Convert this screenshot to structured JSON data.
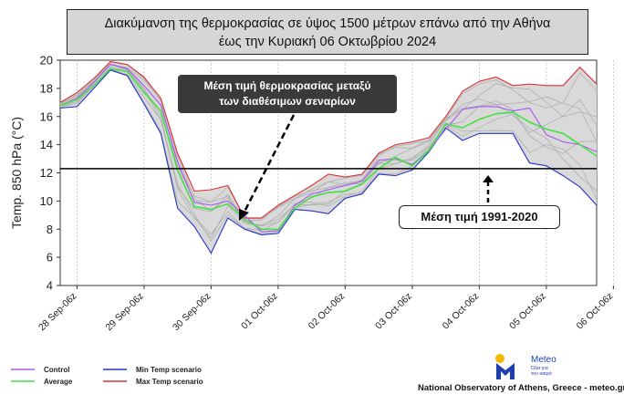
{
  "title": {
    "line1": "Διακύμανση της θερμοκρασίας σε ύψος 1500 μέτρων επάνω από την Αθήνα",
    "line2": "έως την Κυριακή 06 Οκτωβρίου 2024"
  },
  "annotations": {
    "average_note_line1": "Μέση τιμή θερμοκρασίας μεταξύ",
    "average_note_line2": "των διαθέσιμων σεναρίων",
    "climatology_note": "Μέση τιμή 1991-2020"
  },
  "legend": {
    "control": "Control",
    "average": "Average",
    "min": "Min Temp scenario",
    "max": "Max Temp scenario"
  },
  "footer": {
    "credit": "National Observatory of Athens, Greece - meteo.gr",
    "logo_name": "Meteo",
    "logo_tagline_1": "Όλα για",
    "logo_tagline_2": "τον καιρό"
  },
  "colors": {
    "control": "#a855f7",
    "average": "#44e044",
    "min": "#2233cc",
    "max": "#e03030",
    "ensemble": "#b0b0b0",
    "band": "#d9d9d9",
    "logo": "#1e3fb0",
    "logo_sun": "#f5b800"
  },
  "chart_data": {
    "type": "line",
    "ylabel": "Temp. 850 hPa (°C)",
    "ylim": [
      4,
      20
    ],
    "yticks": [
      4,
      6,
      8,
      10,
      12,
      14,
      16,
      18,
      20
    ],
    "xticks": [
      "28 Sep-06z",
      "29 Sep-06z",
      "30 Sep-06z",
      "01 Oct-06z",
      "02 Oct-06z",
      "03 Oct-06z",
      "04 Oct-06z",
      "05 Oct-06z",
      "06 Oct-06z"
    ],
    "x_step_hours": 6,
    "x_start": "28 Sep-00z",
    "climatology": 12.3,
    "series": [
      {
        "name": "Control",
        "values": [
          16.8,
          17.3,
          18.4,
          19.7,
          19.4,
          18.2,
          16.8,
          12.8,
          9.9,
          9.7,
          10.0,
          9.0,
          7.8,
          7.9,
          9.7,
          10.5,
          10.8,
          11.1,
          11.4,
          12.9,
          13.0,
          12.6,
          13.6,
          15.1,
          16.5,
          16.7,
          16.7,
          16.4,
          16.6,
          14.7,
          14.2,
          14.0,
          13.5
        ]
      },
      {
        "name": "Average",
        "values": [
          16.8,
          17.2,
          18.2,
          19.4,
          19.2,
          17.7,
          16.4,
          12.2,
          9.6,
          9.4,
          9.8,
          8.7,
          8.0,
          8.0,
          9.5,
          10.3,
          10.6,
          10.7,
          11.2,
          12.3,
          13.1,
          12.5,
          13.6,
          15.5,
          15.2,
          15.8,
          16.2,
          16.3,
          15.6,
          15.1,
          14.8,
          14.0,
          13.2
        ]
      },
      {
        "name": "Min Temp scenario",
        "values": [
          16.6,
          16.7,
          18.0,
          19.3,
          18.9,
          16.9,
          14.8,
          9.5,
          8.2,
          6.3,
          8.8,
          8.0,
          7.6,
          7.7,
          9.4,
          9.3,
          9.1,
          10.2,
          10.5,
          11.9,
          11.8,
          12.2,
          13.5,
          15.2,
          14.3,
          14.8,
          14.8,
          14.8,
          12.7,
          12.5,
          11.8,
          11.0,
          9.7
        ]
      },
      {
        "name": "Max Temp scenario",
        "values": [
          17.0,
          17.7,
          18.7,
          19.9,
          19.7,
          18.8,
          17.3,
          13.4,
          10.7,
          10.8,
          11.1,
          8.8,
          8.8,
          9.7,
          10.4,
          11.1,
          11.9,
          11.7,
          11.9,
          13.4,
          14.0,
          14.2,
          14.5,
          16.0,
          17.8,
          18.5,
          18.8,
          18.2,
          18.3,
          18.2,
          18.2,
          19.5,
          18.3
        ]
      }
    ]
  }
}
